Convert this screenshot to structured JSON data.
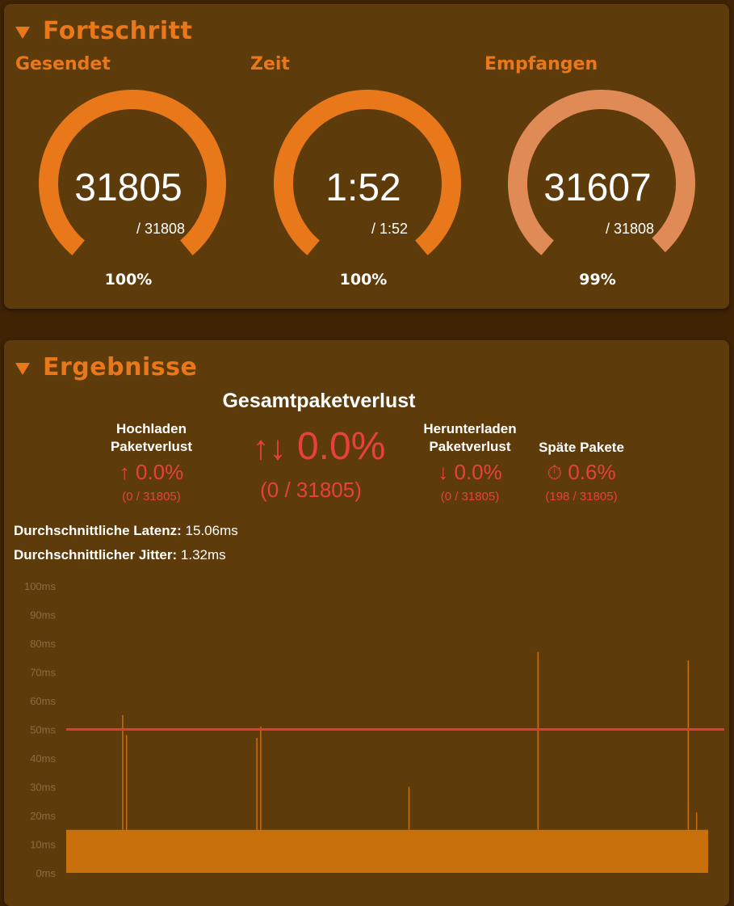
{
  "progress": {
    "title": "Fortschritt",
    "gauges": [
      {
        "label": "Gesendet",
        "value": "31805",
        "total": "/ 31808",
        "percent": "100%",
        "fraction": 1.0,
        "color": "#e8781a"
      },
      {
        "label": "Zeit",
        "value": "1:52",
        "total": "/ 1:52",
        "percent": "100%",
        "fraction": 1.0,
        "color": "#e8781a"
      },
      {
        "label": "Empfangen",
        "value": "31607",
        "total": "/ 31808",
        "percent": "99%",
        "fraction": 0.99,
        "color": "#e08a56"
      }
    ]
  },
  "results": {
    "title": "Ergebnisse",
    "total_loss": {
      "title": "Gesamtpaketverlust",
      "icon": "up-down-arrows-icon",
      "value": "0.0%",
      "detail": "(0 / 31805)"
    },
    "upload": {
      "label_line1": "Hochladen",
      "label_line2": "Paketverlust",
      "icon": "up-arrow-icon",
      "value": "0.0%",
      "detail": "(0 / 31805)"
    },
    "download": {
      "label_line1": "Herunterladen",
      "label_line2": "Paketverlust",
      "icon": "down-arrow-icon",
      "value": "0.0%",
      "detail": "(0 / 31805)"
    },
    "late": {
      "label": "Späte Pakete",
      "icon": "stopwatch-icon",
      "value": "0.6%",
      "detail": "(198 / 31805)"
    },
    "latency": {
      "label": "Durchschnittliche Latenz:",
      "value": "15.06ms"
    },
    "jitter": {
      "label": "Durchschnittlicher Jitter:",
      "value": "1.32ms"
    },
    "accent_color": "#e8413a"
  },
  "chart_data": {
    "type": "bar",
    "title": "",
    "xlabel": "",
    "ylabel": "",
    "y_ticks": [
      "0ms",
      "10ms",
      "20ms",
      "30ms",
      "40ms",
      "50ms",
      "60ms",
      "70ms",
      "80ms",
      "90ms",
      "100ms"
    ],
    "ylim": [
      0,
      100
    ],
    "baseline_latency_ms": 15,
    "threshold_ms": 50,
    "threshold_color": "#e23a35",
    "bar_color": "#c8700c",
    "spikes": [
      {
        "x_fraction": 0.088,
        "value": 55
      },
      {
        "x_fraction": 0.094,
        "value": 48
      },
      {
        "x_fraction": 0.297,
        "value": 47
      },
      {
        "x_fraction": 0.303,
        "value": 51
      },
      {
        "x_fraction": 0.534,
        "value": 30
      },
      {
        "x_fraction": 0.735,
        "value": 77
      },
      {
        "x_fraction": 0.969,
        "value": 74
      },
      {
        "x_fraction": 0.982,
        "value": 21
      }
    ]
  }
}
